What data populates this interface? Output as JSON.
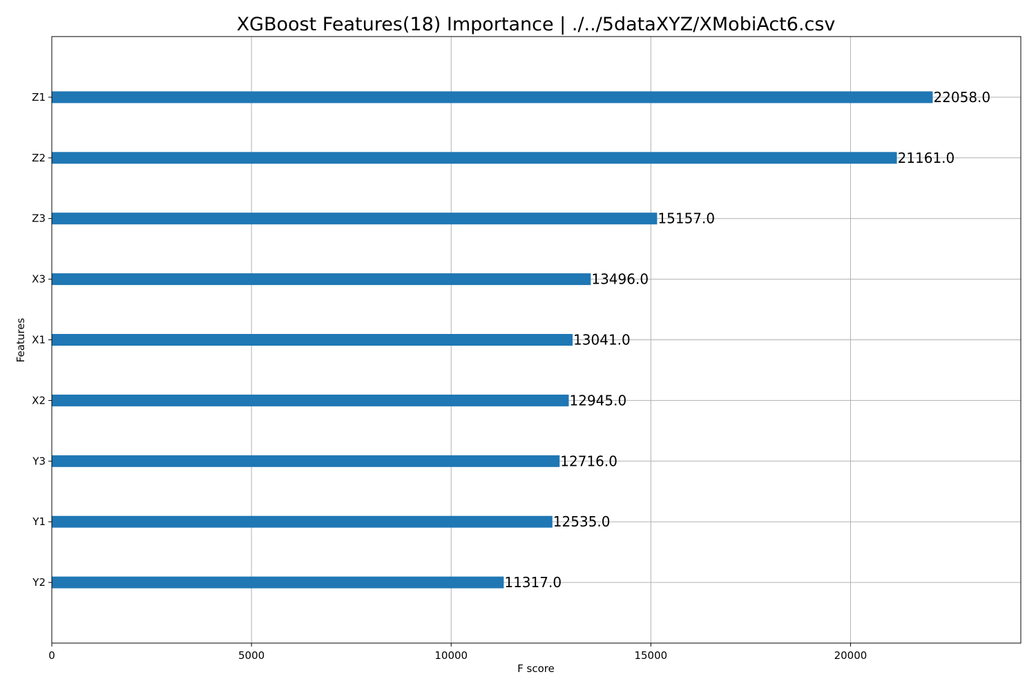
{
  "chart_data": {
    "type": "bar",
    "orientation": "horizontal",
    "title": "XGBoost Features(18) Importance | ./../5dataXYZ/XMobiAct6.csv",
    "xlabel": "F score",
    "ylabel": "Features",
    "categories": [
      "Y2",
      "Y1",
      "Y3",
      "X2",
      "X1",
      "X3",
      "Z3",
      "Z2",
      "Z1"
    ],
    "values": [
      11317.0,
      12535.0,
      12716.0,
      12945.0,
      13041.0,
      13496.0,
      15157.0,
      21161.0,
      22058.0
    ],
    "value_labels": [
      "11317.0",
      "12535.0",
      "12716.0",
      "12945.0",
      "13041.0",
      "13496.0",
      "15157.0",
      "21161.0",
      "22058.0"
    ],
    "xlim": [
      0,
      24264
    ],
    "xticks": [
      0,
      5000,
      10000,
      15000,
      20000
    ],
    "grid": true,
    "bar_color": "#1f77b4"
  }
}
